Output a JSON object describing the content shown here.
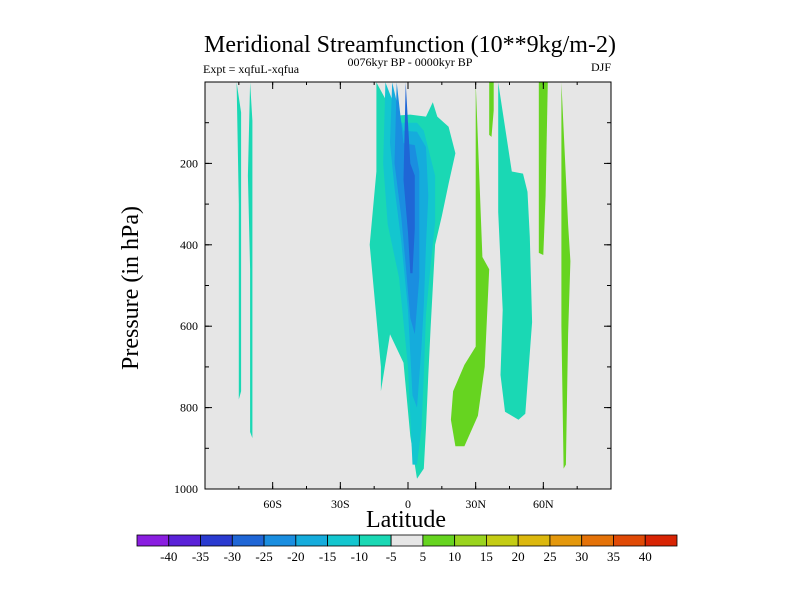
{
  "chart_data": {
    "type": "heatmap",
    "title": "Meridional Streamfunction (10**9kg/m-2)",
    "subtitle": "0076kyr BP - 0000kyr BP",
    "experiment": "Expt = xqfuL-xqfua",
    "season": "DJF",
    "xlabel": "Latitude",
    "ylabel": "Pressure (in hPa)",
    "xlim": [
      -90,
      90
    ],
    "ylim": [
      1000,
      0
    ],
    "x_ticks": [
      {
        "value": -60,
        "label": "60S"
      },
      {
        "value": -30,
        "label": "30S"
      },
      {
        "value": 0,
        "label": "0"
      },
      {
        "value": 30,
        "label": "30N"
      },
      {
        "value": 60,
        "label": "60N"
      }
    ],
    "y_ticks": [
      {
        "value": 200,
        "label": "200"
      },
      {
        "value": 400,
        "label": "400"
      },
      {
        "value": 600,
        "label": "600"
      },
      {
        "value": 800,
        "label": "800"
      },
      {
        "value": 1000,
        "label": "1000"
      }
    ],
    "background_color": "#e6e6e6",
    "colorbar": {
      "labels": [
        "-40",
        "-35",
        "-30",
        "-25",
        "-20",
        "-15",
        "-10",
        "-5",
        "5",
        "10",
        "15",
        "20",
        "25",
        "30",
        "35",
        "40"
      ],
      "colors": [
        "#8a1ee0",
        "#5a22d8",
        "#2a3bd0",
        "#1f66d6",
        "#1a8ee0",
        "#15acdc",
        "#13c6cf",
        "#1ad8b4",
        "#e6e6e6",
        "#66d420",
        "#9ad41e",
        "#c4cc14",
        "#dcb80e",
        "#e4980c",
        "#e47208",
        "#e04a06",
        "#d82404"
      ]
    },
    "regions": [
      {
        "name": "trop-cell-m10",
        "value": -10,
        "color": "#1ad8b4",
        "points": [
          [
            -14,
            1
          ],
          [
            -14,
            220
          ],
          [
            -17,
            400
          ],
          [
            -12,
            700
          ],
          [
            -12,
            760
          ],
          [
            -8,
            620
          ],
          [
            -2,
            690
          ],
          [
            1,
            870
          ],
          [
            4,
            975
          ],
          [
            7,
            950
          ],
          [
            8,
            850
          ],
          [
            9,
            720
          ],
          [
            10,
            605
          ],
          [
            12,
            400
          ],
          [
            15,
            330
          ],
          [
            18,
            250
          ],
          [
            21,
            175
          ],
          [
            18,
            110
          ],
          [
            13,
            85
          ],
          [
            11,
            50
          ],
          [
            8,
            85
          ],
          [
            1,
            80
          ],
          [
            -6,
            83
          ]
        ]
      },
      {
        "name": "trop-cell-m15",
        "value": -15,
        "color": "#13c6cf",
        "points": [
          [
            -10,
            1
          ],
          [
            -11,
            200
          ],
          [
            -9,
            350
          ],
          [
            -4,
            480
          ],
          [
            0,
            700
          ],
          [
            2,
            940
          ],
          [
            4,
            940
          ],
          [
            6,
            850
          ],
          [
            7,
            720
          ],
          [
            8,
            570
          ],
          [
            10,
            450
          ],
          [
            12,
            345
          ],
          [
            12,
            230
          ],
          [
            7,
            120
          ],
          [
            4,
            100
          ],
          [
            -3,
            100
          ]
        ]
      },
      {
        "name": "trop-cell-m20",
        "value": -20,
        "color": "#15acdc",
        "points": [
          [
            -7,
            1
          ],
          [
            -8,
            150
          ],
          [
            -6,
            260
          ],
          [
            -3,
            390
          ],
          [
            0,
            560
          ],
          [
            2,
            770
          ],
          [
            4,
            800
          ],
          [
            6,
            650
          ],
          [
            7,
            550
          ],
          [
            8,
            400
          ],
          [
            9,
            280
          ],
          [
            8,
            160
          ],
          [
            4,
            122
          ],
          [
            -2,
            120
          ]
        ]
      },
      {
        "name": "trop-cell-m25",
        "value": -25,
        "color": "#1a8ee0",
        "points": [
          [
            -5,
            1
          ],
          [
            -6,
            200
          ],
          [
            -3,
            330
          ],
          [
            -1,
            450
          ],
          [
            1,
            580
          ],
          [
            3,
            620
          ],
          [
            5,
            480
          ],
          [
            5,
            320
          ],
          [
            5,
            220
          ],
          [
            3,
            155
          ],
          [
            -2,
            150
          ]
        ]
      },
      {
        "name": "trop-cell-m30",
        "value": -30,
        "color": "#1f66d6",
        "points": [
          [
            -1,
            1
          ],
          [
            -2,
            240
          ],
          [
            0,
            370
          ],
          [
            1,
            470
          ],
          [
            2,
            470
          ],
          [
            3,
            360
          ],
          [
            3,
            230
          ],
          [
            1,
            200
          ]
        ]
      },
      {
        "name": "tropical-cell-shallow",
        "value": 10,
        "color": "#66d420",
        "points": [
          [
            30,
            1
          ],
          [
            30,
            650
          ],
          [
            25,
            695
          ],
          [
            20,
            760
          ],
          [
            19,
            830
          ],
          [
            21,
            895
          ],
          [
            25,
            895
          ],
          [
            31,
            820
          ],
          [
            34,
            700
          ],
          [
            36,
            460
          ],
          [
            33,
            430
          ]
        ]
      },
      {
        "name": "midlat-cell",
        "value": -10,
        "color": "#1ad8b4",
        "points": [
          [
            40,
            1
          ],
          [
            40,
            320
          ],
          [
            42,
            560
          ],
          [
            41,
            720
          ],
          [
            43,
            810
          ],
          [
            49,
            830
          ],
          [
            52,
            815
          ],
          [
            55,
            590
          ],
          [
            54,
            380
          ],
          [
            53,
            270
          ],
          [
            51,
            225
          ],
          [
            46,
            220
          ]
        ]
      },
      {
        "name": "polar-strip-south",
        "value": -10,
        "color": "#1ad8b4",
        "points": [
          [
            -70,
            1
          ],
          [
            -71,
            230
          ],
          [
            -70,
            460
          ],
          [
            -70,
            860
          ],
          [
            -69,
            875
          ],
          [
            -69,
            700
          ],
          [
            -69,
            370
          ],
          [
            -69,
            95
          ]
        ]
      },
      {
        "name": "polar-strip-south-2",
        "value": -10,
        "color": "#1ad8b4",
        "points": [
          [
            -76,
            1
          ],
          [
            -75,
            300
          ],
          [
            -75,
            640
          ],
          [
            -75,
            780
          ],
          [
            -74,
            760
          ],
          [
            -74,
            330
          ],
          [
            -74,
            75
          ]
        ]
      },
      {
        "name": "upper-strip-north",
        "value": 10,
        "color": "#66d420",
        "points": [
          [
            36,
            1
          ],
          [
            36,
            130
          ],
          [
            37,
            135
          ],
          [
            38,
            70
          ],
          [
            38,
            1
          ]
        ]
      },
      {
        "name": "upper-strip-north-2",
        "value": 10,
        "color": "#66d420",
        "points": [
          [
            58,
            1
          ],
          [
            58,
            420
          ],
          [
            60,
            425
          ],
          [
            61,
            280
          ],
          [
            62,
            1
          ]
        ]
      },
      {
        "name": "polar-strip-north",
        "value": 10,
        "color": "#66d420",
        "points": [
          [
            68,
            1
          ],
          [
            68,
            600
          ],
          [
            69,
            950
          ],
          [
            70,
            940
          ],
          [
            71,
            620
          ],
          [
            72,
            440
          ],
          [
            71,
            350
          ]
        ]
      }
    ]
  }
}
